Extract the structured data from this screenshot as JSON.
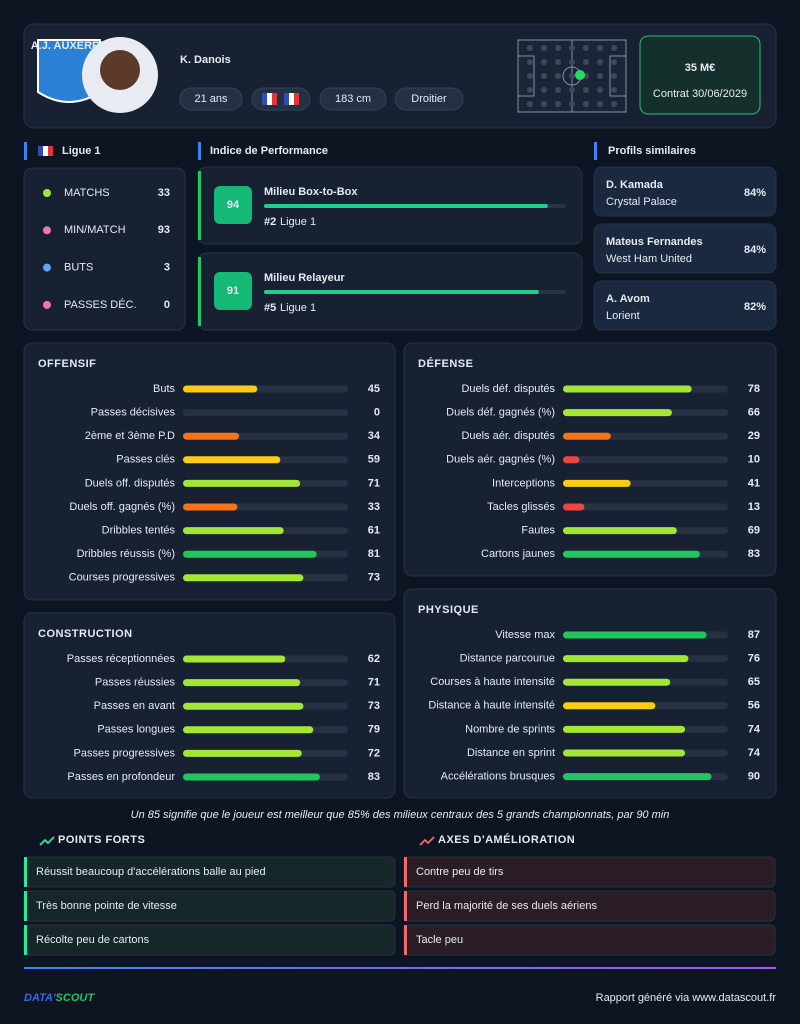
{
  "header": {
    "club": "A.J. AUXERRE",
    "name": "K. Danois",
    "tags": [
      "21 ans",
      "183 cm",
      "Droitier"
    ],
    "market_value": "35 M€",
    "contract": "Contrat 30/06/2029"
  },
  "league": {
    "title": "Ligue 1",
    "stats": [
      {
        "label": "MATCHS",
        "value": 33
      },
      {
        "label": "MIN/MATCH",
        "value": 93
      },
      {
        "label": "BUTS",
        "value": 3
      },
      {
        "label": "PASSES DÉC.",
        "value": 0
      }
    ]
  },
  "performance": {
    "title": "Indice de Performance",
    "items": [
      {
        "score": 94,
        "role": "Milieu Box-to-Box",
        "rank": "#2",
        "league": "Ligue 1"
      },
      {
        "score": 91,
        "role": "Milieu Relayeur",
        "rank": "#5",
        "league": "Ligue 1"
      }
    ]
  },
  "similar": {
    "title": "Profils similaires",
    "items": [
      {
        "name": "D. Kamada",
        "club": "Crystal Palace",
        "match": "84%"
      },
      {
        "name": "Mateus Fernandes",
        "club": "West Ham United",
        "match": "84%"
      },
      {
        "name": "A. Avom",
        "club": "Lorient",
        "match": "82%"
      }
    ]
  },
  "offensif": {
    "title": "OFFENSIF",
    "rows": [
      {
        "label": "Buts",
        "value": 45
      },
      {
        "label": "Passes décisives",
        "value": 0
      },
      {
        "label": "2ème et 3ème P.D",
        "value": 34
      },
      {
        "label": "Passes clés",
        "value": 59
      },
      {
        "label": "Duels off. disputés",
        "value": 71
      },
      {
        "label": "Duels off. gagnés (%)",
        "value": 33
      },
      {
        "label": "Dribbles tentés",
        "value": 61
      },
      {
        "label": "Dribbles réussis (%)",
        "value": 81
      },
      {
        "label": "Courses progressives",
        "value": 73
      }
    ]
  },
  "defense": {
    "title": "DÉFENSE",
    "rows": [
      {
        "label": "Duels déf. disputés",
        "value": 78
      },
      {
        "label": "Duels déf. gagnés (%)",
        "value": 66
      },
      {
        "label": "Duels aér. disputés",
        "value": 29
      },
      {
        "label": "Duels aér. gagnés (%)",
        "value": 10
      },
      {
        "label": "Interceptions",
        "value": 41
      },
      {
        "label": "Tacles glissés",
        "value": 13
      },
      {
        "label": "Fautes",
        "value": 69
      },
      {
        "label": "Cartons jaunes",
        "value": 83
      }
    ]
  },
  "construction": {
    "title": "CONSTRUCTION",
    "rows": [
      {
        "label": "Passes réceptionnées",
        "value": 62
      },
      {
        "label": "Passes réussies",
        "value": 71
      },
      {
        "label": "Passes en avant",
        "value": 73
      },
      {
        "label": "Passes longues",
        "value": 79
      },
      {
        "label": "Passes progressives",
        "value": 72
      },
      {
        "label": "Passes en profondeur",
        "value": 83
      }
    ]
  },
  "physique": {
    "title": "PHYSIQUE",
    "rows": [
      {
        "label": "Vitesse max",
        "value": 87
      },
      {
        "label": "Distance parcourue",
        "value": 76
      },
      {
        "label": "Courses à haute intensité",
        "value": 65
      },
      {
        "label": "Distance à haute intensité",
        "value": 56
      },
      {
        "label": "Nombre de sprints",
        "value": 74
      },
      {
        "label": "Distance en sprint",
        "value": 74
      },
      {
        "label": "Accélérations brusques",
        "value": 90
      }
    ]
  },
  "footnote": "Un 85 signifie que le joueur est meilleur que 85% des milieux centraux des 5 grands championnats, par 90 min",
  "strengths": {
    "title": "POINTS FORTS",
    "items": [
      "Réussit beaucoup d'accélérations balle au pied",
      "Très bonne pointe de vitesse",
      "Récolte peu de cartons"
    ]
  },
  "improvements": {
    "title": "AXES D'AMÉLIORATION",
    "items": [
      "Contre peu de tirs",
      "Perd la majorité de ses duels aériens",
      "Tacle peu"
    ]
  },
  "footer": {
    "logo_left": "DATA'",
    "logo_right": "SCOUT",
    "text": "Rapport généré via www.datascout.fr"
  }
}
